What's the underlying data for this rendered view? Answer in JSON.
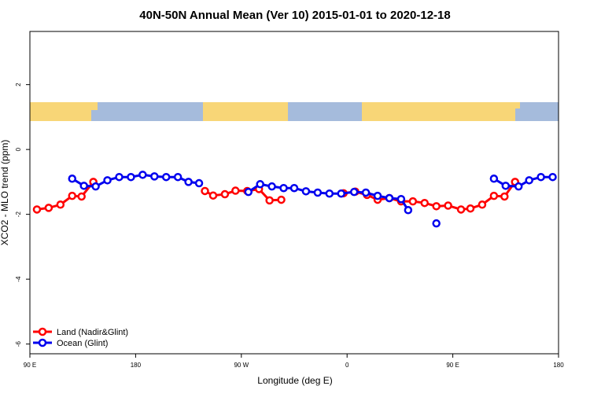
{
  "chart_data": {
    "type": "line",
    "title": "40N-50N Annual Mean (Ver 10)   2015-01-01 to 2020-12-18",
    "x_label": "Longitude (deg E)",
    "y_label": "XCO2 - MLO trend (ppm)",
    "xlim": [
      90,
      540
    ],
    "ylim": [
      -6.3,
      3.64
    ],
    "xticks": [
      {
        "value": 90,
        "label": "90 E"
      },
      180,
      {
        "value": 270,
        "label": "90 W"
      },
      {
        "value": 360,
        "label": "0"
      },
      {
        "value": 450,
        "label": "90 E"
      },
      {
        "value": 540,
        "label": "180"
      }
    ],
    "yticks": [
      2,
      0,
      -2,
      -4,
      -6
    ],
    "legend": "bottom-left",
    "series": [
      {
        "name": "Land (Nadir&Glint)",
        "color": "#ff0000",
        "x": [
          96,
          106,
          116,
          126,
          134,
          144,
          null,
          239,
          246,
          256,
          265,
          275,
          285,
          294,
          304,
          null,
          357,
          367,
          377,
          386,
          396,
          406,
          416,
          426,
          436,
          446,
          457,
          465,
          475,
          485,
          494,
          503
        ],
        "values": [
          -1.85,
          -1.8,
          -1.7,
          -1.43,
          -1.45,
          -1.0,
          null,
          -1.28,
          -1.42,
          -1.38,
          -1.27,
          -1.28,
          -1.22,
          -1.57,
          -1.55,
          null,
          -1.35,
          -1.3,
          -1.4,
          -1.55,
          -1.5,
          -1.6,
          -1.6,
          -1.65,
          -1.75,
          -1.73,
          -1.85,
          -1.82,
          -1.7,
          -1.43,
          -1.45,
          -1.0
        ]
      },
      {
        "name": "Ocean (Glint)",
        "color": "#0000ee",
        "x": [
          126,
          136,
          146,
          156,
          166,
          176,
          186,
          196,
          206,
          216,
          225,
          234,
          null,
          276,
          286,
          296,
          306,
          315,
          325,
          335,
          345,
          355,
          366,
          376,
          386,
          396,
          406,
          412,
          null,
          436,
          null,
          485,
          495,
          506,
          515,
          525,
          535
        ],
        "values": [
          -0.9,
          -1.12,
          -1.14,
          -0.95,
          -0.85,
          -0.85,
          -0.78,
          -0.83,
          -0.85,
          -0.85,
          -1.0,
          -1.04,
          null,
          -1.31,
          -1.07,
          -1.14,
          -1.19,
          -1.19,
          -1.29,
          -1.33,
          -1.36,
          -1.36,
          -1.31,
          -1.33,
          -1.43,
          -1.5,
          -1.53,
          -1.87,
          null,
          -2.28,
          null,
          -0.9,
          -1.12,
          -1.14,
          -0.95,
          -0.85,
          -0.85
        ]
      }
    ]
  }
}
